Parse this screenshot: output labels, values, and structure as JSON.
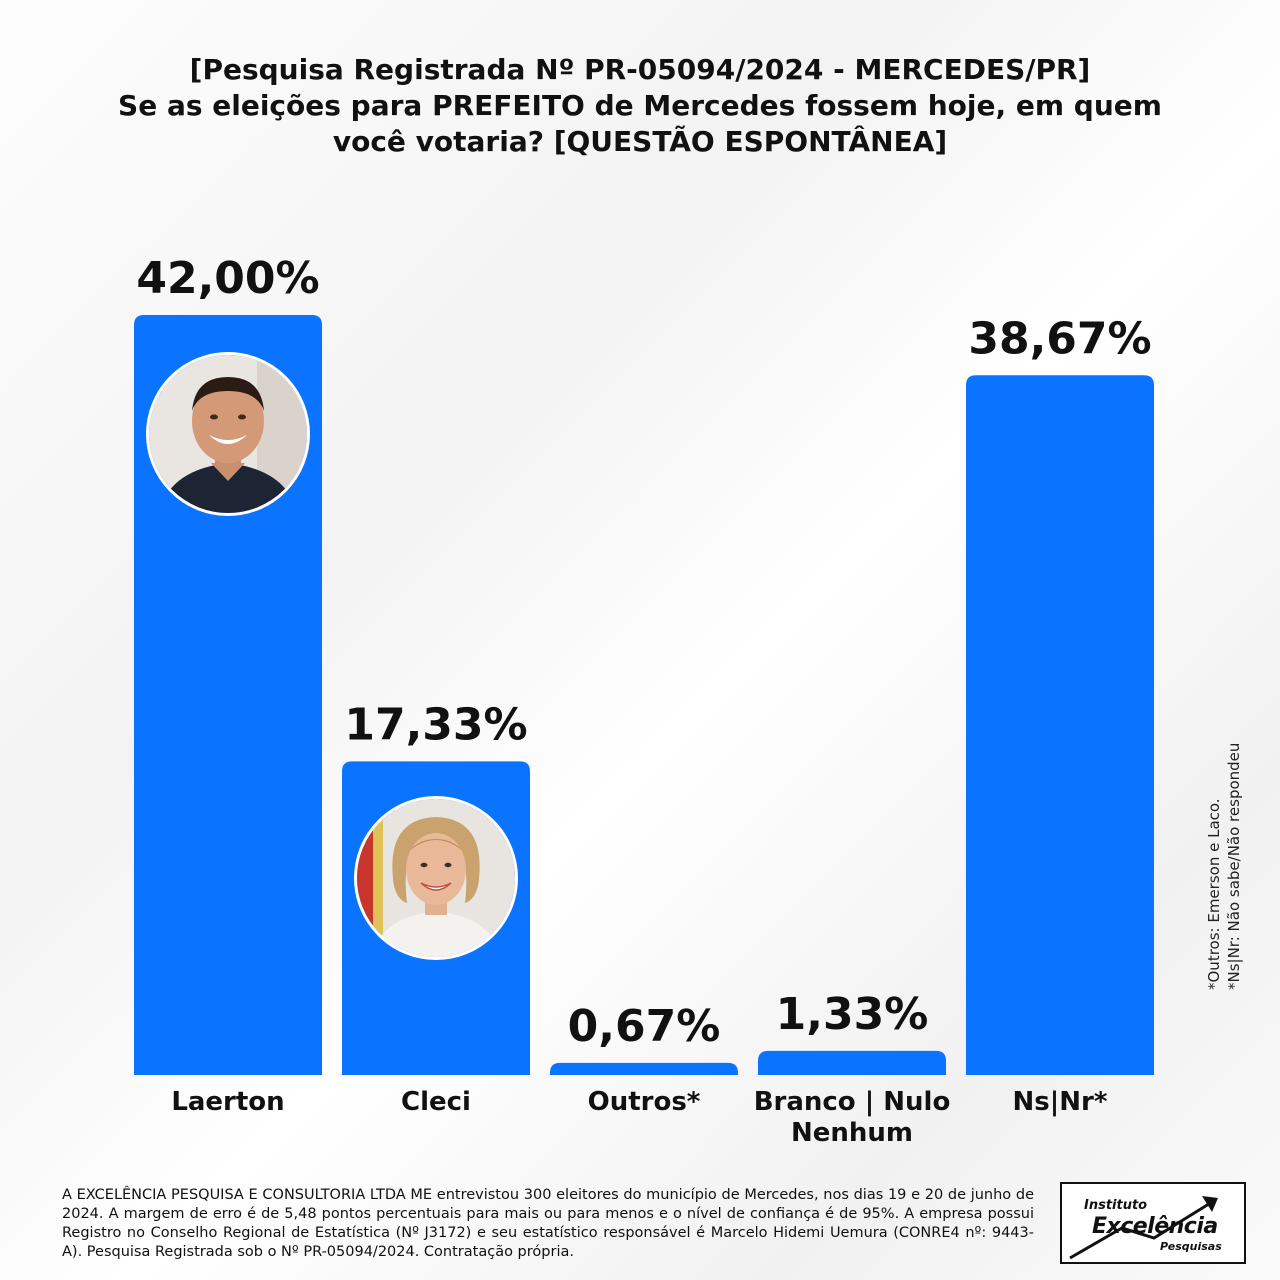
{
  "chart_data": {
    "type": "bar",
    "title": [
      "[Pesquisa Registrada Nº PR-05094/2024 - MERCEDES/PR]",
      "Se as eleições para PREFEITO de Mercedes fossem hoje, em quem",
      "você votaria? [QUESTÃO ESPONTÂNEA]"
    ],
    "categories": [
      [
        "Laerton"
      ],
      [
        "Cleci"
      ],
      [
        "Outros*"
      ],
      [
        "Branco | Nulo",
        "Nenhum"
      ],
      [
        "Ns|Nr*"
      ]
    ],
    "values": [
      42.0,
      17.33,
      0.67,
      1.33,
      38.67
    ],
    "value_labels": [
      "42,00%",
      "17,33%",
      "0,67%",
      "1,33%",
      "38,67%"
    ],
    "ylim": [
      0,
      42
    ],
    "bar_color": "#0a73ff",
    "grid": false,
    "legend": "none"
  },
  "photos": [
    {
      "candidate": "Laerton",
      "icon": "male-candidate-portrait"
    },
    {
      "candidate": "Cleci",
      "icon": "female-candidate-portrait"
    }
  ],
  "side_notes": [
    "*Outros: Emerson e Laco.",
    "*Ns|Nr: Não sabe/Não respondeu"
  ],
  "footer": "A EXCELÊNCIA PESQUISA E CONSULTORIA LTDA ME entrevistou 300 eleitores do município de Mercedes, nos dias 19 e 20 de junho de 2024. A margem de erro é de 5,48 pontos percentuais para mais ou para menos e o nível de confiança é de 95%. A empresa possui Registro no Conselho Regional de Estatística (Nº J3172) e seu estatístico responsável é Marcelo Hidemi Uemura (CONRE4 nº: 9443-A). Pesquisa Registrada sob o Nº PR-05094/2024. Contratação própria.",
  "logo": {
    "line1": "Instituto",
    "line2": "Excelência",
    "line3": "Pesquisas"
  }
}
